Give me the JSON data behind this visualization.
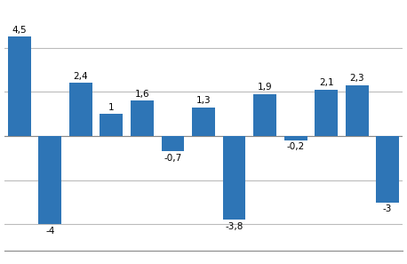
{
  "values": [
    4.5,
    -4.0,
    2.4,
    1.0,
    1.6,
    -0.7,
    1.3,
    -3.8,
    1.9,
    -0.2,
    2.1,
    2.3,
    -3.0
  ],
  "labels": [
    "4,5",
    "-4",
    "2,4",
    "1",
    "1,6",
    "-0,7",
    "1,3",
    "-3,8",
    "1,9",
    "-0,2",
    "2,1",
    "2,3",
    "-3"
  ],
  "bar_color": "#2E75B6",
  "background_color": "#ffffff",
  "ylim": [
    -5.2,
    5.8
  ],
  "yticks": [
    -4,
    -2,
    0,
    2,
    4
  ],
  "grid_color": "#bbbbbb",
  "label_fontsize": 7.5,
  "bar_width": 0.75
}
